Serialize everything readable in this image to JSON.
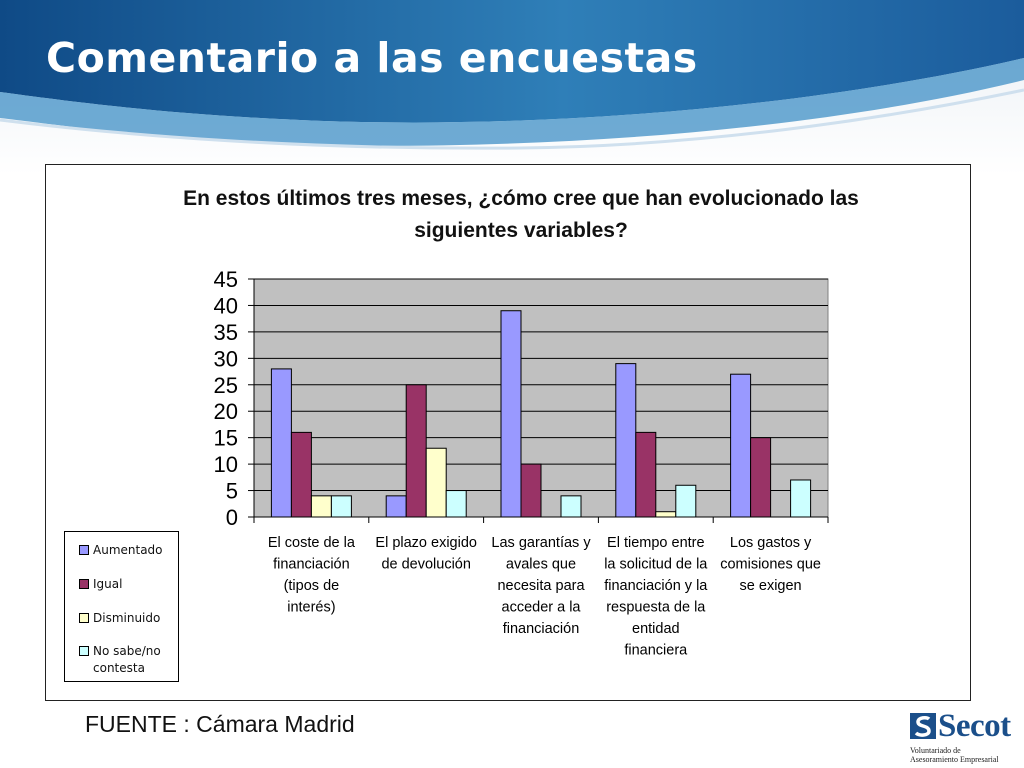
{
  "slide": {
    "title": "Comentario a las encuestas",
    "source": "FUENTE : Cámara  Madrid"
  },
  "logo": {
    "name": "Secot",
    "line1": "Voluntariado de",
    "line2": "Asesoramiento Empresarial"
  },
  "chart_data": {
    "type": "bar",
    "title": "En estos últimos tres meses, ¿cómo cree que han evolucionado las siguientes variables?",
    "title_lines": [
      "En estos últimos tres meses, ¿cómo cree que han evolucionado las",
      "siguientes variables?"
    ],
    "categories": [
      "El coste de la financiación (tipos de interés)",
      "El plazo exigido de devolución",
      "Las garantías y avales que necesita para acceder a la financiación",
      "El tiempo entre la solicitud de la financiación y la respuesta de la entidad financiera",
      "Los gastos y comisiones que se exigen"
    ],
    "category_lines": [
      [
        "El coste de la",
        "financiación",
        "(tipos de",
        "interés)"
      ],
      [
        "El plazo exigido",
        "de devolución"
      ],
      [
        "Las garantías y",
        "avales que",
        "necesita para",
        "acceder a la",
        "financiación"
      ],
      [
        "El tiempo entre",
        "la solicitud de la",
        "financiación y la",
        "respuesta de la",
        "entidad",
        "financiera"
      ],
      [
        "Los gastos y",
        "comisiones que",
        "se exigen"
      ]
    ],
    "series": [
      {
        "name": "Aumentado",
        "values": [
          28,
          4,
          39,
          29,
          27
        ],
        "color": "#9999ff"
      },
      {
        "name": "Igual",
        "values": [
          16,
          25,
          10,
          16,
          15
        ],
        "color": "#993366"
      },
      {
        "name": "Disminuido",
        "values": [
          4,
          13,
          0,
          1,
          0
        ],
        "color": "#ffffcc"
      },
      {
        "name": "No sabe/no contesta",
        "values": [
          4,
          5,
          4,
          6,
          7
        ],
        "color": "#ccffff"
      }
    ],
    "ylim": [
      0,
      45
    ],
    "yticks": [
      "0",
      "5",
      "10",
      "15",
      "20",
      "25",
      "30",
      "35",
      "40",
      "45"
    ],
    "grid": true,
    "plot_background": "#c0c0c0",
    "legend_position": "bottom-left"
  }
}
